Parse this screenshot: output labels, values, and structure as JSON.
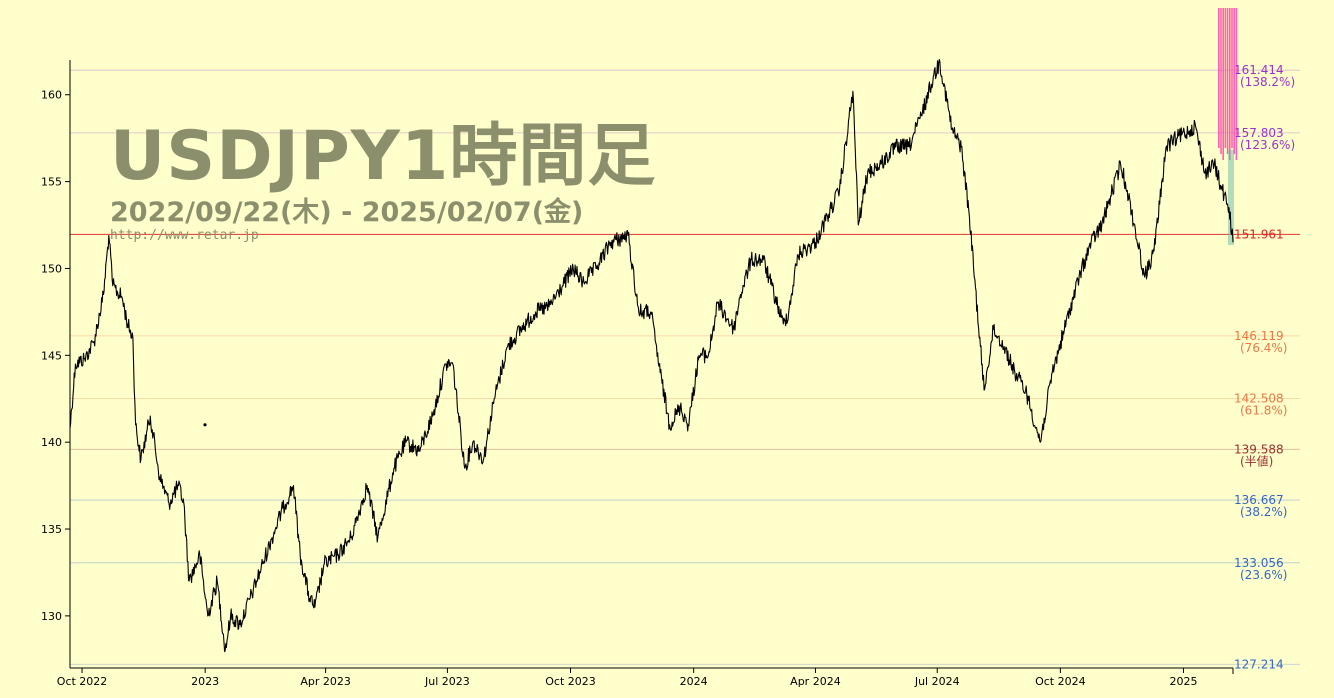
{
  "header": {
    "title": "USDJPY1時間足",
    "date_range": "2022/09/22(木) - 2025/02/07(金)",
    "url": "http://www.retar.jp"
  },
  "colors": {
    "background": "#ffffcc",
    "price_line": "#000000",
    "current_price": "#dd2222",
    "upper_fib": "#9933cc",
    "mid_fib": "#ee7744",
    "half": "#993333",
    "lower_fib": "#3366cc",
    "marker": "#ff44aa"
  },
  "chart_data": {
    "type": "line",
    "title": "USDJPY1時間足",
    "xlabel": "",
    "ylabel": "",
    "x_range": [
      "2022-09-22",
      "2025-02-07"
    ],
    "ylim": [
      127,
      162
    ],
    "y_ticks": [
      130,
      135,
      140,
      145,
      150,
      155,
      160
    ],
    "x_ticks": [
      {
        "label": "Oct 2022",
        "date": "2022-10-01"
      },
      {
        "label": "2023",
        "date": "2023-01-01"
      },
      {
        "label": "Apr 2023",
        "date": "2023-04-01"
      },
      {
        "label": "Jul 2023",
        "date": "2023-07-01"
      },
      {
        "label": "Oct 2023",
        "date": "2023-10-01"
      },
      {
        "label": "2024",
        "date": "2024-01-01"
      },
      {
        "label": "Apr 2024",
        "date": "2024-04-01"
      },
      {
        "label": "Jul 2024",
        "date": "2024-07-01"
      },
      {
        "label": "Oct 2024",
        "date": "2024-10-01"
      },
      {
        "label": "2025",
        "date": "2025-01-01"
      }
    ],
    "levels": [
      {
        "value": 161.414,
        "label": "161.414",
        "pct": "(138.2%)",
        "color": "#9933cc"
      },
      {
        "value": 157.803,
        "label": "157.803",
        "pct": "(123.6%)",
        "color": "#9933cc"
      },
      {
        "value": 151.961,
        "label": "151.961",
        "pct": "",
        "color": "#dd2222"
      },
      {
        "value": 146.119,
        "label": "146.119",
        "pct": "(76.4%)",
        "color": "#ee7744"
      },
      {
        "value": 142.508,
        "label": "142.508",
        "pct": "(61.8%)",
        "color": "#ee7744"
      },
      {
        "value": 139.588,
        "label": "139.588",
        "pct": "(半値)",
        "color": "#993333"
      },
      {
        "value": 136.667,
        "label": "136.667",
        "pct": "(38.2%)",
        "color": "#3366cc"
      },
      {
        "value": 133.056,
        "label": "133.056",
        "pct": "(23.6%)",
        "color": "#3366cc"
      },
      {
        "value": 127.214,
        "label": "127.214",
        "pct": "",
        "color": "#3366cc"
      }
    ],
    "series": [
      {
        "values": [
          [
            "2022-09-22",
            140.8
          ],
          [
            "2022-09-26",
            144.5
          ],
          [
            "2022-10-03",
            144.8
          ],
          [
            "2022-10-10",
            145.8
          ],
          [
            "2022-10-17",
            148.5
          ],
          [
            "2022-10-21",
            151.9
          ],
          [
            "2022-10-24",
            149.0
          ],
          [
            "2022-10-31",
            148.3
          ],
          [
            "2022-11-04",
            146.8
          ],
          [
            "2022-11-08",
            146.0
          ],
          [
            "2022-11-10",
            141.0
          ],
          [
            "2022-11-14",
            139.0
          ],
          [
            "2022-11-21",
            141.5
          ],
          [
            "2022-11-28",
            138.0
          ],
          [
            "2022-12-05",
            136.5
          ],
          [
            "2022-12-12",
            137.5
          ],
          [
            "2022-12-16",
            136.5
          ],
          [
            "2022-12-20",
            132.0
          ],
          [
            "2022-12-28",
            133.5
          ],
          [
            "2023-01-03",
            130.0
          ],
          [
            "2023-01-10",
            132.0
          ],
          [
            "2023-01-16",
            128.0
          ],
          [
            "2023-01-20",
            130.0
          ],
          [
            "2023-01-27",
            129.5
          ],
          [
            "2023-02-06",
            131.5
          ],
          [
            "2023-02-13",
            133.0
          ],
          [
            "2023-02-20",
            134.5
          ],
          [
            "2023-02-28",
            136.2
          ],
          [
            "2023-03-08",
            137.5
          ],
          [
            "2023-03-13",
            133.5
          ],
          [
            "2023-03-20",
            131.0
          ],
          [
            "2023-03-24",
            130.5
          ],
          [
            "2023-03-31",
            133.0
          ],
          [
            "2023-04-10",
            133.5
          ],
          [
            "2023-04-20",
            134.5
          ],
          [
            "2023-05-02",
            137.5
          ],
          [
            "2023-05-10",
            134.5
          ],
          [
            "2023-05-22",
            138.5
          ],
          [
            "2023-05-31",
            140.0
          ],
          [
            "2023-06-10",
            139.5
          ],
          [
            "2023-06-20",
            141.5
          ],
          [
            "2023-06-30",
            144.5
          ],
          [
            "2023-07-05",
            144.5
          ],
          [
            "2023-07-14",
            138.5
          ],
          [
            "2023-07-20",
            140.0
          ],
          [
            "2023-07-28",
            139.0
          ],
          [
            "2023-08-05",
            142.5
          ],
          [
            "2023-08-15",
            145.5
          ],
          [
            "2023-08-25",
            146.5
          ],
          [
            "2023-09-05",
            147.5
          ],
          [
            "2023-09-15",
            147.8
          ],
          [
            "2023-09-25",
            149.0
          ],
          [
            "2023-10-03",
            150.0
          ],
          [
            "2023-10-10",
            149.2
          ],
          [
            "2023-10-20",
            150.0
          ],
          [
            "2023-10-31",
            151.5
          ],
          [
            "2023-11-13",
            151.9
          ],
          [
            "2023-11-21",
            147.5
          ],
          [
            "2023-11-30",
            147.5
          ],
          [
            "2023-12-07",
            144.0
          ],
          [
            "2023-12-14",
            141.0
          ],
          [
            "2023-12-22",
            142.0
          ],
          [
            "2023-12-28",
            141.0
          ],
          [
            "2024-01-05",
            145.0
          ],
          [
            "2024-01-12",
            145.0
          ],
          [
            "2024-01-19",
            148.0
          ],
          [
            "2024-01-31",
            146.5
          ],
          [
            "2024-02-05",
            148.5
          ],
          [
            "2024-02-13",
            150.5
          ],
          [
            "2024-02-22",
            150.5
          ],
          [
            "2024-03-08",
            146.8
          ],
          [
            "2024-03-12",
            147.5
          ],
          [
            "2024-03-19",
            150.8
          ],
          [
            "2024-04-01",
            151.5
          ],
          [
            "2024-04-10",
            153.0
          ],
          [
            "2024-04-19",
            154.5
          ],
          [
            "2024-04-29",
            160.2
          ],
          [
            "2024-05-03",
            152.5
          ],
          [
            "2024-05-10",
            155.5
          ],
          [
            "2024-05-20",
            156.0
          ],
          [
            "2024-05-31",
            157.0
          ],
          [
            "2024-06-10",
            157.0
          ],
          [
            "2024-06-20",
            159.0
          ],
          [
            "2024-06-28",
            161.0
          ],
          [
            "2024-07-03",
            161.9
          ],
          [
            "2024-07-12",
            158.0
          ],
          [
            "2024-07-19",
            157.0
          ],
          [
            "2024-07-25",
            153.0
          ],
          [
            "2024-08-05",
            143.0
          ],
          [
            "2024-08-12",
            146.5
          ],
          [
            "2024-08-20",
            145.5
          ],
          [
            "2024-08-28",
            144.0
          ],
          [
            "2024-09-05",
            143.0
          ],
          [
            "2024-09-16",
            140.0
          ],
          [
            "2024-09-25",
            144.0
          ],
          [
            "2024-10-04",
            146.5
          ],
          [
            "2024-10-15",
            149.5
          ],
          [
            "2024-10-24",
            151.5
          ],
          [
            "2024-11-01",
            152.5
          ],
          [
            "2024-11-15",
            156.0
          ],
          [
            "2024-11-20",
            154.5
          ],
          [
            "2024-12-03",
            149.5
          ],
          [
            "2024-12-10",
            151.0
          ],
          [
            "2024-12-19",
            157.0
          ],
          [
            "2024-12-27",
            157.5
          ],
          [
            "2025-01-10",
            158.2
          ],
          [
            "2025-01-17",
            155.5
          ],
          [
            "2025-01-24",
            156.0
          ],
          [
            "2025-01-30",
            154.5
          ],
          [
            "2025-02-04",
            153.5
          ],
          [
            "2025-02-07",
            151.5
          ]
        ]
      }
    ]
  }
}
